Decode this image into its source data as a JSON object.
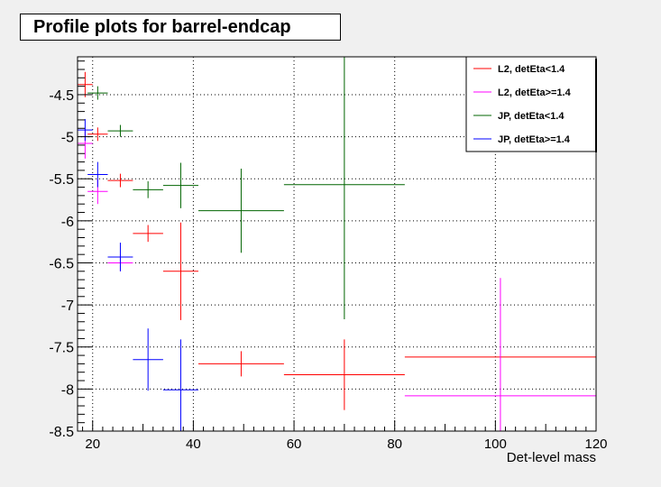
{
  "chart_data": {
    "type": "scatter",
    "title": "Profile plots for barrel-endcap",
    "xlabel": "Det-level mass",
    "ylabel": "",
    "xlim": [
      17,
      120
    ],
    "ylim": [
      -8.5,
      -4.05
    ],
    "xticks": [
      "20",
      "40",
      "60",
      "80",
      "100",
      "120"
    ],
    "yticks": [
      "-4.5",
      "-5",
      "-5.5",
      "-6",
      "-6.5",
      "-7",
      "-7.5",
      "-8",
      "-8.5"
    ],
    "grid": true,
    "legend_position": "top-right",
    "series": [
      {
        "name": "L2, detEta<1.4",
        "color": "#ff0000",
        "points": [
          {
            "x": 18.5,
            "xerr": 1.5,
            "y": -4.38,
            "yerr": 0.15
          },
          {
            "x": 21.0,
            "xerr": 2.0,
            "y": -4.97,
            "yerr": 0.08
          },
          {
            "x": 25.5,
            "xerr": 2.5,
            "y": -5.52,
            "yerr": 0.08
          },
          {
            "x": 31.0,
            "xerr": 3.0,
            "y": -6.15,
            "yerr": 0.1
          },
          {
            "x": 37.5,
            "xerr": 3.5,
            "y": -6.6,
            "yerr": 0.58
          },
          {
            "x": 49.5,
            "xerr": 8.5,
            "y": -7.7,
            "yerr": 0.15
          },
          {
            "x": 70.0,
            "xerr": 12.0,
            "y": -7.83,
            "yerr": 0.42
          },
          {
            "x": 101.0,
            "xerr": 19.0,
            "y": -7.62,
            "yerr": 0.0
          }
        ]
      },
      {
        "name": "L2, detEta>=1.4",
        "color": "#ff00ff",
        "points": [
          {
            "x": 18.5,
            "xerr": 1.5,
            "y": -5.08,
            "yerr": 0.18
          },
          {
            "x": 21.0,
            "xerr": 2.0,
            "y": -5.65,
            "yerr": 0.15
          },
          {
            "x": 25.5,
            "xerr": 2.5,
            "y": -6.5,
            "yerr": 0.1
          },
          {
            "x": 101.0,
            "xerr": 19.0,
            "y": -8.08,
            "yerr": 1.4
          }
        ]
      },
      {
        "name": "JP, detEta<1.4",
        "color": "#006400",
        "points": [
          {
            "x": 21.0,
            "xerr": 2.0,
            "y": -4.48,
            "yerr": 0.08
          },
          {
            "x": 25.5,
            "xerr": 2.5,
            "y": -4.93,
            "yerr": 0.07
          },
          {
            "x": 31.0,
            "xerr": 3.0,
            "y": -5.63,
            "yerr": 0.1
          },
          {
            "x": 37.5,
            "xerr": 3.5,
            "y": -5.58,
            "yerr": 0.27
          },
          {
            "x": 49.5,
            "xerr": 8.5,
            "y": -5.88,
            "yerr": 0.5
          },
          {
            "x": 70.0,
            "xerr": 12.0,
            "y": -5.57,
            "yerr": 1.6
          }
        ]
      },
      {
        "name": "JP, detEta>=1.4",
        "color": "#0000ff",
        "points": [
          {
            "x": 18.5,
            "xerr": 1.5,
            "y": -4.92,
            "yerr": 0.13
          },
          {
            "x": 21.0,
            "xerr": 2.0,
            "y": -5.45,
            "yerr": 0.15
          },
          {
            "x": 25.5,
            "xerr": 2.5,
            "y": -6.43,
            "yerr": 0.17
          },
          {
            "x": 31.0,
            "xerr": 3.0,
            "y": -7.65,
            "yerr": 0.37
          },
          {
            "x": 37.5,
            "xerr": 3.5,
            "y": -8.01,
            "yerr": 0.6
          }
        ]
      }
    ]
  }
}
